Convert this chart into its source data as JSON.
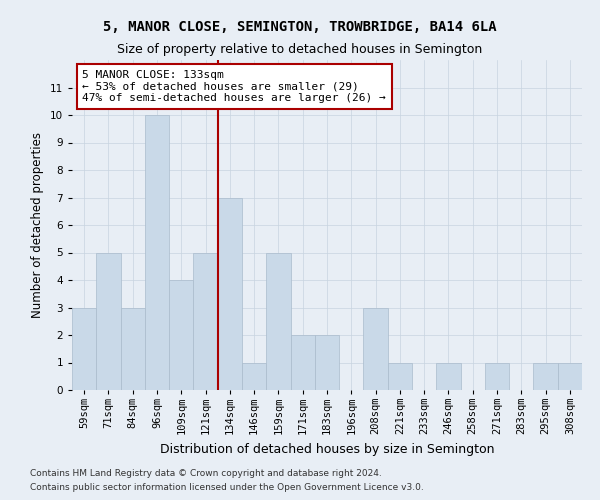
{
  "title": "5, MANOR CLOSE, SEMINGTON, TROWBRIDGE, BA14 6LA",
  "subtitle": "Size of property relative to detached houses in Semington",
  "xlabel": "Distribution of detached houses by size in Semington",
  "ylabel": "Number of detached properties",
  "categories": [
    "59sqm",
    "71sqm",
    "84sqm",
    "96sqm",
    "109sqm",
    "121sqm",
    "134sqm",
    "146sqm",
    "159sqm",
    "171sqm",
    "183sqm",
    "196sqm",
    "208sqm",
    "221sqm",
    "233sqm",
    "246sqm",
    "258sqm",
    "271sqm",
    "283sqm",
    "295sqm",
    "308sqm"
  ],
  "values": [
    3,
    5,
    3,
    10,
    4,
    5,
    7,
    1,
    5,
    2,
    2,
    0,
    3,
    1,
    0,
    1,
    0,
    1,
    0,
    1,
    1
  ],
  "bar_color": "#c9d9e8",
  "bar_edgecolor": "#aabbcc",
  "vline_x_index": 6.0,
  "vline_color": "#aa0000",
  "annotation_text": "5 MANOR CLOSE: 133sqm\n← 53% of detached houses are smaller (29)\n47% of semi-detached houses are larger (26) →",
  "annotation_box_color": "#ffffff",
  "annotation_box_edgecolor": "#aa0000",
  "ylim": [
    0,
    12
  ],
  "yticks": [
    0,
    1,
    2,
    3,
    4,
    5,
    6,
    7,
    8,
    9,
    10,
    11
  ],
  "grid_color": "#c8d4e0",
  "background_color": "#e8eef5",
  "footer_line1": "Contains HM Land Registry data © Crown copyright and database right 2024.",
  "footer_line2": "Contains public sector information licensed under the Open Government Licence v3.0.",
  "title_fontsize": 10,
  "subtitle_fontsize": 9,
  "tick_fontsize": 7.5,
  "ylabel_fontsize": 8.5,
  "xlabel_fontsize": 9,
  "annotation_fontsize": 8,
  "footer_fontsize": 6.5
}
